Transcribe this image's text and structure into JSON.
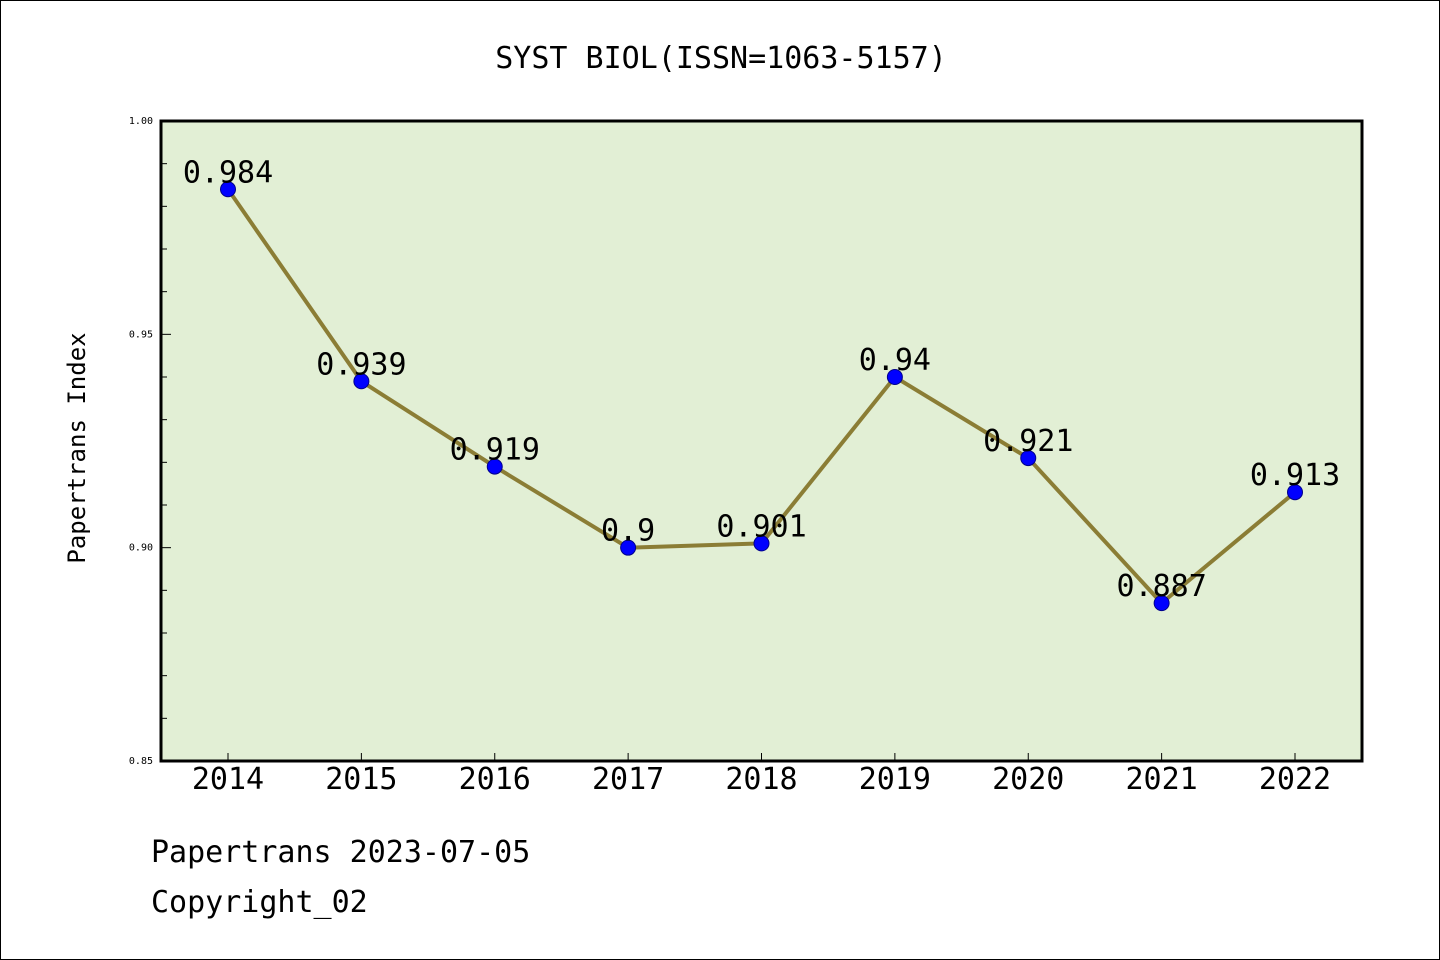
{
  "chart_data": {
    "type": "line",
    "title": "SYST BIOL(ISSN=1063-5157)",
    "xlabel": "",
    "ylabel": "Papertrans Index",
    "categories": [
      "2014",
      "2015",
      "2016",
      "2017",
      "2018",
      "2019",
      "2020",
      "2021",
      "2022"
    ],
    "series": [
      {
        "values": [
          0.984,
          0.939,
          0.919,
          0.9,
          0.901,
          0.94,
          0.921,
          0.887,
          0.913
        ],
        "labels": [
          "0.984",
          "0.939",
          "0.919",
          "0.9",
          "0.901",
          "0.94",
          "0.921",
          "0.887",
          "0.913"
        ]
      }
    ],
    "ylim": [
      0.85,
      1.0
    ],
    "yticks": [
      "0.85",
      "0.90",
      "0.95",
      "1.00"
    ],
    "grid": false,
    "legend": "none",
    "colors": {
      "plot_background": "#e2efd5",
      "line": "#8b7d35",
      "marker": "#0000ff",
      "marker_edge": "#00008b"
    }
  },
  "footer": {
    "source": "Papertrans 2023-07-05",
    "copyright": "Copyright_02"
  }
}
